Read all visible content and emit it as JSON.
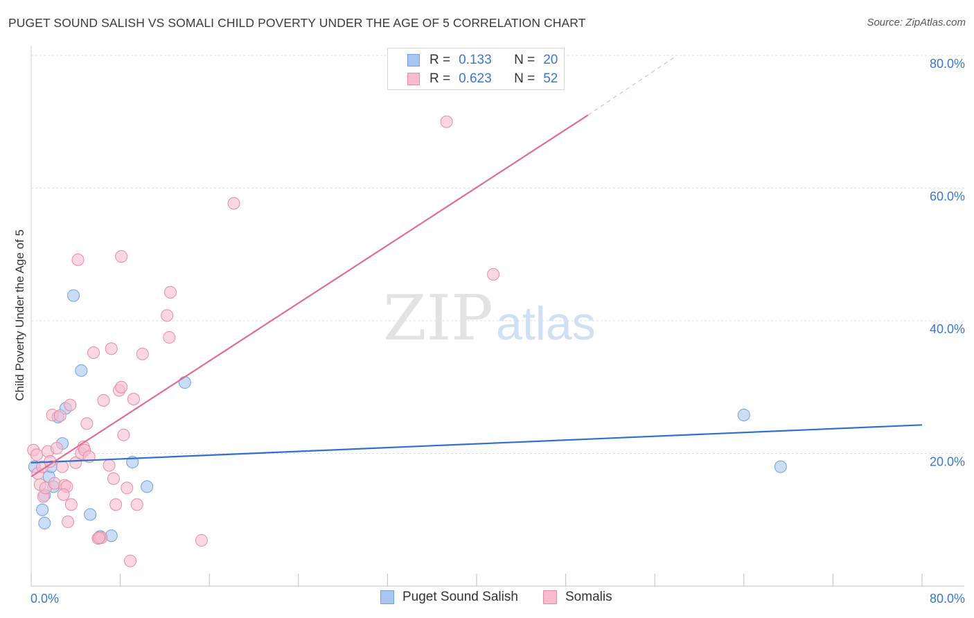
{
  "title": "PUGET SOUND SALISH VS SOMALI CHILD POVERTY UNDER THE AGE OF 5 CORRELATION CHART",
  "source": "Source: ZipAtlas.com",
  "watermark": {
    "zip": "ZIP",
    "atlas": "atlas"
  },
  "legend": {
    "r_label": "R =",
    "n_label": "N =",
    "rows": [
      {
        "r": "0.133",
        "n": "20",
        "color": "#a9c6f0",
        "edge": "#6f9fdc"
      },
      {
        "r": "0.623",
        "n": "52",
        "color": "#f8bccd",
        "edge": "#e58aa6"
      }
    ]
  },
  "chart_data": {
    "type": "scatter",
    "title": "PUGET SOUND SALISH VS SOMALI CHILD POVERTY UNDER THE AGE OF 5 CORRELATION CHART",
    "xlabel": "",
    "ylabel": "Child Poverty Under the Age of 5",
    "xlim": [
      0,
      80
    ],
    "ylim": [
      0,
      80
    ],
    "x_tick_labels": [
      "0.0%",
      "80.0%"
    ],
    "y_ticks": [
      20,
      40,
      60,
      80
    ],
    "y_tick_labels": [
      "20.0%",
      "40.0%",
      "60.0%",
      "80.0%"
    ],
    "grid": true,
    "legend_position": "top-center",
    "series": [
      {
        "name": "Puget Sound Salish",
        "color": "#a9c6f0",
        "edge": "#6f9fdc",
        "line_color": "#2f6fce",
        "trend": {
          "x0": 0,
          "y0": 18.6,
          "x1": 80,
          "y1": 24.3
        },
        "points": [
          [
            0.3,
            18.0
          ],
          [
            1.0,
            11.5
          ],
          [
            1.2,
            13.7
          ],
          [
            1.2,
            9.5
          ],
          [
            1.6,
            16.5
          ],
          [
            1.8,
            18.0
          ],
          [
            2.0,
            15.0
          ],
          [
            2.4,
            25.5
          ],
          [
            2.8,
            21.5
          ],
          [
            3.1,
            26.8
          ],
          [
            3.8,
            43.8
          ],
          [
            4.5,
            32.5
          ],
          [
            5.3,
            10.8
          ],
          [
            6.2,
            7.5
          ],
          [
            7.2,
            7.6
          ],
          [
            9.1,
            18.7
          ],
          [
            10.4,
            15.0
          ],
          [
            13.8,
            30.7
          ],
          [
            67.3,
            18.0
          ],
          [
            64.0,
            25.8
          ]
        ]
      },
      {
        "name": "Somalis",
        "color": "#f8bccd",
        "edge": "#e58aa6",
        "line_color": "#e06b96",
        "trend": {
          "x0": 0,
          "y0": 16.5,
          "x1": 50.0,
          "y1": 71.0
        },
        "trend_dashed": {
          "x0": 50.0,
          "y0": 71.0,
          "x1": 58.0,
          "y1": 80.0
        },
        "points": [
          [
            0.2,
            20.5
          ],
          [
            0.5,
            19.8
          ],
          [
            0.6,
            17.0
          ],
          [
            0.8,
            15.3
          ],
          [
            1.0,
            18.0
          ],
          [
            1.1,
            13.5
          ],
          [
            1.3,
            14.8
          ],
          [
            1.5,
            20.3
          ],
          [
            1.7,
            18.8
          ],
          [
            1.9,
            25.8
          ],
          [
            2.1,
            15.5
          ],
          [
            2.3,
            20.8
          ],
          [
            2.6,
            25.7
          ],
          [
            2.8,
            18.0
          ],
          [
            3.0,
            15.2
          ],
          [
            3.2,
            15.0
          ],
          [
            3.3,
            9.7
          ],
          [
            3.5,
            27.3
          ],
          [
            3.6,
            12.3
          ],
          [
            4.0,
            18.6
          ],
          [
            4.2,
            49.2
          ],
          [
            4.5,
            20.0
          ],
          [
            4.7,
            21.0
          ],
          [
            4.8,
            20.5
          ],
          [
            5.0,
            24.5
          ],
          [
            5.2,
            19.5
          ],
          [
            5.6,
            35.2
          ],
          [
            6.0,
            7.2
          ],
          [
            6.3,
            7.3
          ],
          [
            6.5,
            28.0
          ],
          [
            7.0,
            18.2
          ],
          [
            7.2,
            35.8
          ],
          [
            7.4,
            16.2
          ],
          [
            7.6,
            12.3
          ],
          [
            7.9,
            29.5
          ],
          [
            8.1,
            30.0
          ],
          [
            8.1,
            49.7
          ],
          [
            8.3,
            22.8
          ],
          [
            8.6,
            14.8
          ],
          [
            8.9,
            3.8
          ],
          [
            9.2,
            28.2
          ],
          [
            9.5,
            12.3
          ],
          [
            10.0,
            35.0
          ],
          [
            12.2,
            40.8
          ],
          [
            12.4,
            37.5
          ],
          [
            12.5,
            44.3
          ],
          [
            15.3,
            6.9
          ],
          [
            18.2,
            57.7
          ],
          [
            37.3,
            70.0
          ],
          [
            41.5,
            47.0
          ],
          [
            6.1,
            7.3
          ],
          [
            2.9,
            13.8
          ]
        ]
      }
    ]
  }
}
